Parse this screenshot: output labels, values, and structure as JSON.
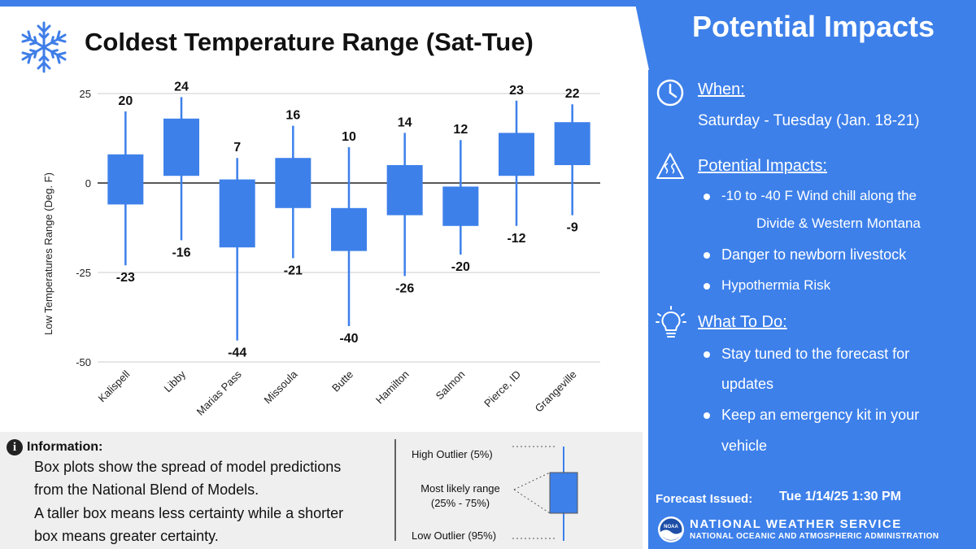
{
  "title": "Coldest Temperature Range (Sat-Tue)",
  "colors": {
    "accent": "#3f7ee8",
    "box": "#3d80ea",
    "panel": "#3d80ea",
    "info_bg": "#efefef"
  },
  "chart_data": {
    "type": "box",
    "title": "Coldest Temperature Range (Sat-Tue)",
    "ylabel": "Low Temperatures Range (Deg. F)",
    "xlabel": "",
    "ylim": [
      -50,
      25
    ],
    "yticks": [
      25,
      0,
      -25,
      -50
    ],
    "categories": [
      "Kalispell",
      "Libby",
      "Marias Pass",
      "Missoula",
      "Butte",
      "Hamilton",
      "Salmon",
      "Pierce, ID",
      "Grangeville"
    ],
    "series": [
      {
        "name": "High Outlier (5%)",
        "values": [
          20,
          24,
          7,
          16,
          10,
          14,
          12,
          23,
          22
        ]
      },
      {
        "name": "75th percentile",
        "values": [
          8,
          18,
          1,
          7,
          -7,
          5,
          -1,
          14,
          17
        ]
      },
      {
        "name": "25th percentile",
        "values": [
          -6,
          2,
          -18,
          -7,
          -19,
          -9,
          -12,
          2,
          5
        ]
      },
      {
        "name": "Low Outlier (95%)",
        "values": [
          -23,
          -16,
          -44,
          -21,
          -40,
          -26,
          -20,
          -12,
          -9
        ]
      }
    ]
  },
  "info": {
    "heading": "Information:",
    "icon_name": "info-icon",
    "lines": [
      "Box plots show the spread of model predictions",
      "from the National Blend of Models.",
      "A taller box means less certainty while a shorter",
      "box means greater certainty."
    ],
    "legend": {
      "high": "High Outlier (5%)",
      "range_line1": "Most likely range",
      "range_line2": "(25% - 75%)",
      "low": "Low Outlier (95%)"
    }
  },
  "impacts": {
    "header": "Potential Impacts",
    "when_heading": "When:",
    "when_text": "Saturday - Tuesday (Jan. 18-21)",
    "impacts_heading": "Potential Impacts:",
    "impact_1_line1": "-10 to  -40 F Wind chill along the",
    "impact_1_line2": "Divide & Western Montana",
    "impact_2": "Danger to newborn livestock",
    "impact_3": "Hypothermia Risk",
    "todo_heading": "What To Do:",
    "todo_1_line1": "Stay tuned to the forecast for",
    "todo_1_line2": "updates",
    "todo_2_line1": "Keep an emergency kit in your",
    "todo_2_line2": "vehicle",
    "forecast_label": "Forecast Issued:",
    "forecast_time": "Tue 1/14/25 1:30 PM",
    "org_name": "NATIONAL WEATHER SERVICE",
    "org_sub": "NATIONAL OCEANIC AND ATMOSPHERIC ADMINISTRATION",
    "logo_text": "NOAA"
  }
}
